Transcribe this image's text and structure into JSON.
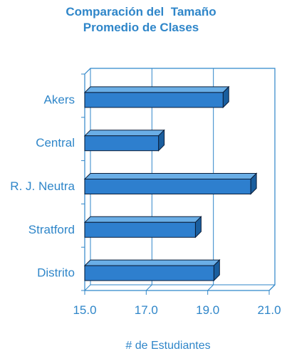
{
  "chart_data": {
    "type": "bar",
    "orientation": "horizontal",
    "title_lines": [
      "Comparación del  Tamaño",
      "Promedio de Clases"
    ],
    "xlabel": "# de Estudiantes",
    "ylabel": "",
    "categories": [
      "Akers",
      "Central",
      "R. J. Neutra",
      "Stratford",
      "Distrito"
    ],
    "values": [
      19.5,
      17.4,
      20.4,
      18.6,
      19.2
    ],
    "xlim": [
      15.0,
      21.0
    ],
    "xticks": [
      "15.0",
      "17.0",
      "19.0",
      "21.0"
    ],
    "grid": true,
    "style": "3d",
    "colors": {
      "bar_front": "#2e7fce",
      "bar_top": "#6aaee6",
      "bar_side": "#1a5e9e",
      "outline": "#0b1e3a",
      "text": "#2f86c9",
      "frame": "#2f86c9"
    }
  }
}
